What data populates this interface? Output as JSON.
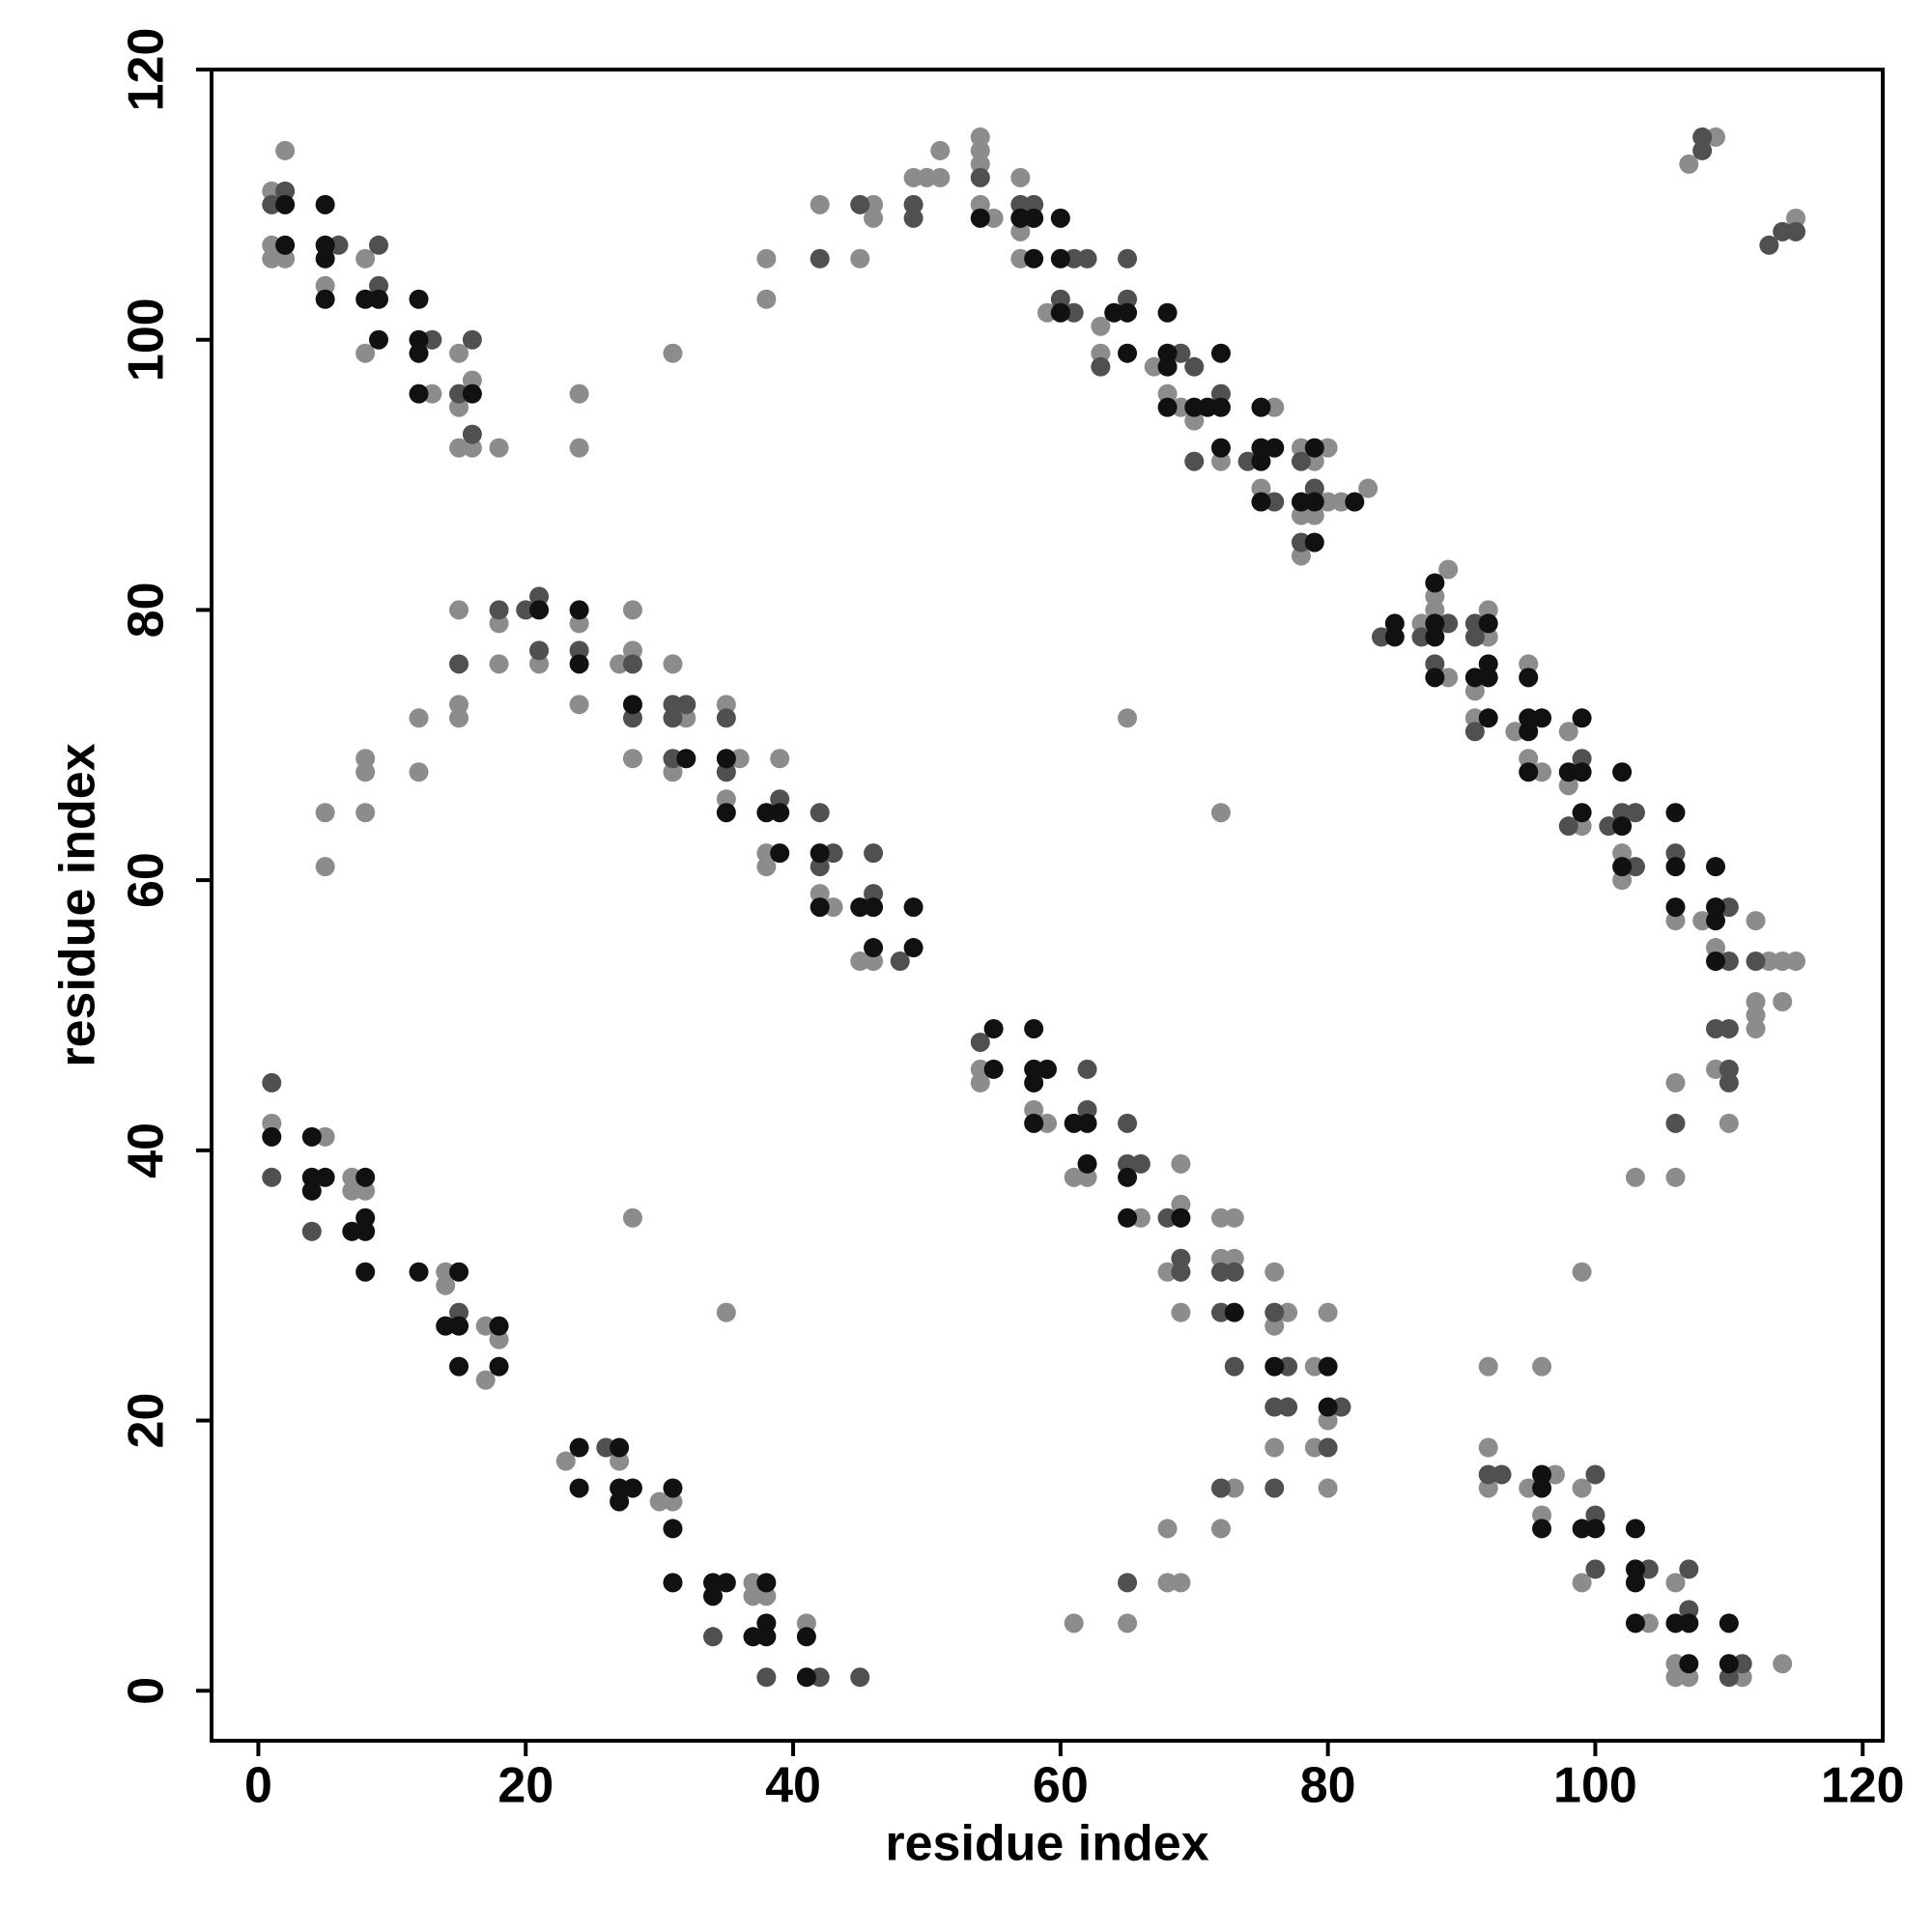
{
  "chart_data": {
    "type": "scatter",
    "xlabel": "residue index",
    "ylabel": "residue index",
    "xlim": [
      -3.5,
      121.5
    ],
    "ylim": [
      -3.7,
      120
    ],
    "xticks": [
      0,
      20,
      40,
      60,
      80,
      100,
      120
    ],
    "yticks": [
      0,
      20,
      40,
      60,
      80,
      100,
      120
    ],
    "series": [
      {
        "color": "#8c8c8c",
        "x": [
          1,
          2,
          1,
          1,
          2,
          5,
          8,
          8,
          13,
          15,
          16,
          15,
          15,
          16,
          18,
          24,
          24,
          31,
          38,
          38,
          42,
          46,
          46,
          45,
          49,
          50,
          51,
          51,
          54,
          54,
          54,
          54,
          55,
          57,
          57,
          57,
          59,
          63,
          63,
          67,
          68,
          69,
          70,
          72,
          76,
          75,
          78,
          80,
          79,
          80,
          81,
          83,
          78,
          79,
          78,
          87,
          88,
          88,
          89,
          89,
          92,
          92,
          91,
          91,
          94,
          95,
          95,
          96,
          98,
          98,
          99,
          102,
          102,
          106,
          108,
          109,
          112,
          113,
          114,
          115,
          112,
          112,
          112,
          114,
          109,
          110,
          106,
          106,
          103,
          99,
          92,
          96,
          65,
          72,
          107,
          109,
          115,
          5,
          5,
          8,
          8,
          8,
          12,
          12,
          15,
          15,
          15,
          18,
          18,
          21,
          24,
          24,
          27,
          28,
          28,
          28,
          31,
          32,
          31,
          35,
          36,
          35,
          39,
          38,
          38,
          42,
          43,
          45,
          46,
          1,
          5,
          7,
          7,
          8,
          14,
          14,
          17,
          18,
          17,
          28,
          35,
          23,
          27,
          30,
          31,
          37,
          37,
          38,
          41,
          54,
          54,
          58,
          59,
          61,
          62,
          66,
          69,
          69,
          68,
          69,
          72,
          73,
          72,
          73,
          76,
          77,
          76,
          79,
          80,
          80,
          79,
          76,
          80,
          73,
          72,
          68,
          68,
          69,
          65,
          61,
          92,
          92,
          95,
          97,
          96,
          99,
          99,
          104,
          106,
          106,
          106,
          107,
          111,
          114
        ],
        "values": [
          111,
          114,
          107,
          106,
          106,
          104,
          106,
          99,
          96,
          99,
          97,
          95,
          92,
          92,
          92,
          96,
          92,
          99,
          106,
          103,
          110,
          110,
          109,
          106,
          112,
          112,
          112,
          114,
          115,
          114,
          113,
          110,
          109,
          112,
          108,
          106,
          102,
          99,
          101,
          98,
          96,
          95,
          94,
          91,
          95,
          89,
          92,
          92,
          91,
          88,
          88,
          89,
          87,
          87,
          84,
          79,
          81,
          80,
          83,
          75,
          80,
          78,
          74,
          72,
          71,
          76,
          69,
          68,
          71,
          67,
          64,
          62,
          60,
          57,
          57,
          55,
          57,
          54,
          54,
          54,
          51,
          50,
          49,
          51,
          46,
          42,
          45,
          38,
          38,
          31,
          24,
          24,
          72,
          65,
          113,
          115,
          109,
          65,
          61,
          69,
          68,
          65,
          72,
          68,
          80,
          73,
          72,
          79,
          76,
          76,
          79,
          73,
          76,
          80,
          77,
          69,
          76,
          72,
          68,
          73,
          69,
          66,
          69,
          62,
          61,
          59,
          58,
          54,
          54,
          42,
          41,
          38,
          37,
          37,
          31,
          30,
          27,
          26,
          23,
          35,
          28,
          17,
          17,
          14,
          14,
          8,
          7,
          7,
          5,
          46,
          45,
          43,
          42,
          38,
          38,
          35,
          36,
          39,
          31,
          28,
          35,
          35,
          32,
          32,
          31,
          28,
          27,
          24,
          28,
          20,
          18,
          18,
          15,
          15,
          12,
          12,
          8,
          8,
          5,
          5,
          18,
          15,
          15,
          16,
          13,
          15,
          8,
          5,
          8,
          2,
          1,
          1,
          1,
          2
        ]
      },
      {
        "color": "#505050",
        "x": [
          2,
          1,
          6,
          9,
          9,
          13,
          16,
          15,
          16,
          42,
          45,
          49,
          49,
          54,
          57,
          58,
          61,
          62,
          60,
          61,
          65,
          65,
          63,
          69,
          70,
          72,
          70,
          74,
          76,
          78,
          79,
          78,
          84,
          87,
          89,
          88,
          91,
          91,
          91,
          99,
          98,
          101,
          102,
          103,
          103,
          106,
          110,
          110,
          112,
          109,
          110,
          110,
          110,
          106,
          108,
          108,
          113,
          114,
          115,
          15,
          18,
          20,
          21,
          21,
          24,
          28,
          28,
          31,
          32,
          31,
          31,
          35,
          35,
          39,
          42,
          43,
          42,
          46,
          46,
          48,
          1,
          1,
          4,
          15,
          26,
          34,
          38,
          42,
          45,
          54,
          62,
          62,
          65,
          65,
          66,
          68,
          69,
          69,
          72,
          73,
          72,
          73,
          76,
          77,
          76,
          77,
          81,
          80,
          76,
          72,
          65,
          92,
          93,
          100,
          100,
          100,
          104,
          107,
          107,
          111,
          110
        ],
        "values": [
          111,
          110,
          107,
          107,
          104,
          100,
          100,
          96,
          93,
          106,
          110,
          110,
          109,
          112,
          110,
          110,
          106,
          106,
          103,
          102,
          103,
          106,
          98,
          99,
          98,
          96,
          91,
          91,
          88,
          91,
          89,
          85,
          78,
          78,
          79,
          76,
          79,
          78,
          71,
          69,
          64,
          64,
          65,
          65,
          61,
          62,
          58,
          54,
          54,
          49,
          49,
          46,
          45,
          42,
          114,
          115,
          107,
          108,
          108,
          76,
          80,
          80,
          81,
          77,
          77,
          76,
          72,
          73,
          73,
          72,
          69,
          72,
          68,
          66,
          65,
          62,
          61,
          59,
          62,
          54,
          45,
          38,
          34,
          28,
          18,
          4,
          1,
          1,
          1,
          48,
          43,
          46,
          42,
          39,
          39,
          35,
          32,
          31,
          31,
          31,
          28,
          24,
          28,
          24,
          21,
          21,
          21,
          18,
          15,
          15,
          8,
          16,
          16,
          16,
          13,
          9,
          9,
          9,
          6,
          2,
          1
        ]
      },
      {
        "color": "#111111",
        "x": [
          2,
          2,
          5,
          5,
          5,
          5,
          8,
          9,
          9,
          12,
          12,
          12,
          12,
          16,
          54,
          57,
          58,
          58,
          60,
          60,
          60,
          64,
          65,
          65,
          68,
          68,
          68,
          68,
          70,
          71,
          72,
          72,
          72,
          75,
          75,
          76,
          75,
          75,
          79,
          78,
          79,
          82,
          79,
          85,
          85,
          88,
          88,
          88,
          88,
          92,
          91,
          92,
          92,
          92,
          95,
          95,
          95,
          96,
          95,
          98,
          99,
          99,
          99,
          102,
          102,
          102,
          106,
          106,
          106,
          109,
          109,
          109,
          109,
          21,
          24,
          24,
          28,
          32,
          35,
          35,
          38,
          39,
          39,
          42,
          42,
          45,
          46,
          46,
          49,
          49,
          1,
          4,
          4,
          5,
          4,
          8,
          8,
          7,
          8,
          8,
          12,
          15,
          14,
          15,
          15,
          18,
          18,
          24,
          24,
          27,
          27,
          27,
          28,
          31,
          31,
          31,
          34,
          35,
          34,
          38,
          38,
          37,
          38,
          41,
          41,
          55,
          55,
          58,
          58,
          59,
          58,
          58,
          61,
          62,
          62,
          65,
          65,
          69,
          73,
          76,
          80,
          80,
          96,
          96,
          96,
          99,
          100,
          103,
          103,
          103,
          103,
          106,
          107,
          107,
          110,
          110
        ],
        "values": [
          110,
          107,
          110,
          107,
          106,
          103,
          103,
          103,
          100,
          103,
          100,
          99,
          96,
          96,
          109,
          109,
          109,
          106,
          109,
          106,
          102,
          102,
          102,
          99,
          102,
          99,
          98,
          95,
          95,
          95,
          99,
          95,
          92,
          95,
          92,
          92,
          91,
          88,
          92,
          88,
          88,
          88,
          85,
          79,
          78,
          82,
          79,
          78,
          75,
          79,
          75,
          76,
          75,
          72,
          75,
          72,
          71,
          72,
          68,
          68,
          72,
          68,
          65,
          68,
          64,
          61,
          65,
          61,
          58,
          61,
          58,
          57,
          54,
          80,
          80,
          76,
          73,
          69,
          69,
          65,
          65,
          65,
          62,
          62,
          58,
          58,
          58,
          55,
          55,
          58,
          41,
          41,
          38,
          38,
          37,
          38,
          35,
          34,
          34,
          31,
          31,
          31,
          27,
          27,
          24,
          27,
          24,
          18,
          15,
          18,
          15,
          14,
          15,
          15,
          12,
          8,
          8,
          8,
          7,
          8,
          5,
          4,
          4,
          4,
          1,
          49,
          46,
          49,
          46,
          46,
          45,
          42,
          42,
          42,
          39,
          38,
          35,
          35,
          28,
          24,
          24,
          21,
          16,
          15,
          12,
          12,
          12,
          12,
          9,
          8,
          5,
          5,
          5,
          2,
          5,
          2
        ]
      }
    ]
  }
}
